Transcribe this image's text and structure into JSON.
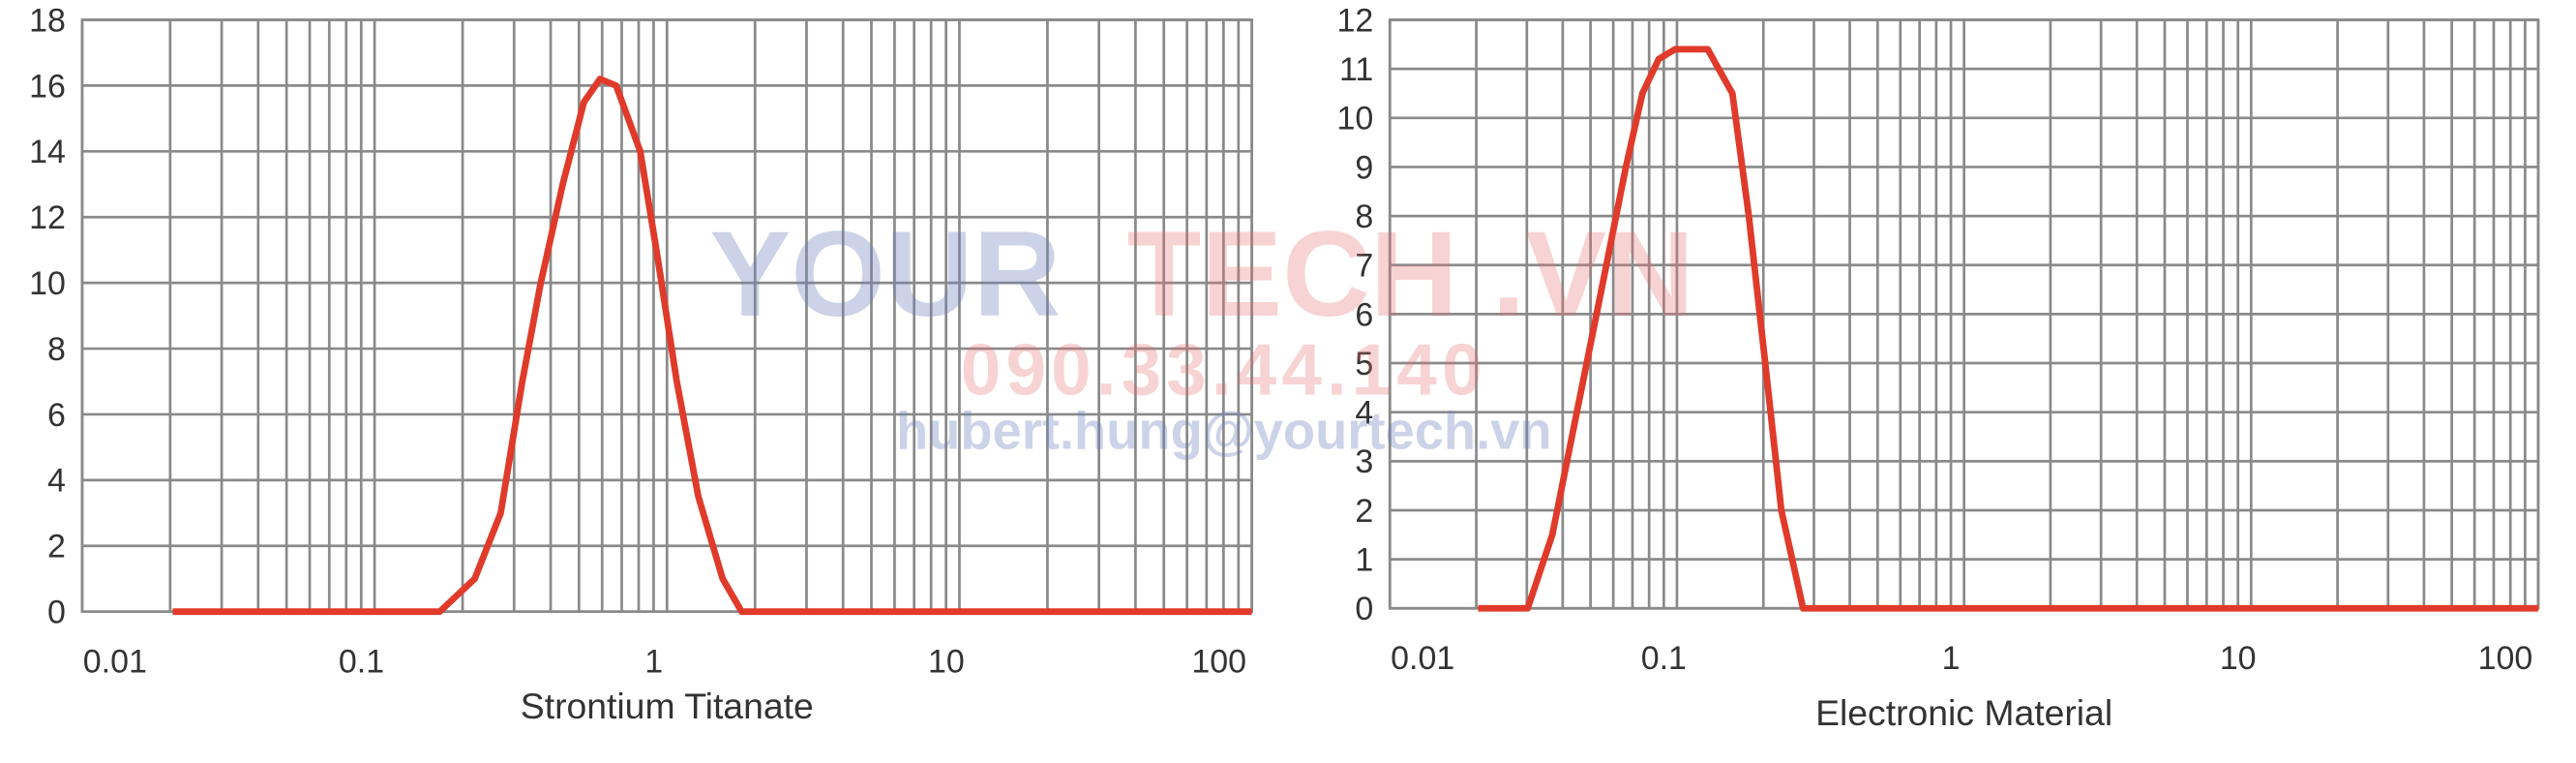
{
  "chart_data": [
    {
      "type": "line",
      "title": "Strontium Titanate",
      "xscale": "log",
      "grid": true,
      "xlim": [
        0.01,
        100
      ],
      "xticks": [
        0.01,
        0.1,
        1,
        10,
        100
      ],
      "ylim": [
        0,
        18
      ],
      "yticks": [
        0,
        2,
        4,
        6,
        8,
        10,
        12,
        14,
        16,
        18
      ],
      "x": [
        0.0204,
        0.167,
        0.22,
        0.27,
        0.32,
        0.37,
        0.44,
        0.52,
        0.59,
        0.67,
        0.81,
        0.92,
        1.08,
        1.28,
        1.55,
        1.8,
        100
      ],
      "series": [
        {
          "color": "#e03a2a",
          "values": [
            0,
            0,
            1,
            3,
            7,
            10,
            13,
            15.5,
            16.2,
            16,
            14,
            11,
            7,
            3.5,
            1,
            0,
            0
          ]
        }
      ]
    },
    {
      "type": "line",
      "title": "Electronic Material",
      "xscale": "log",
      "grid": true,
      "xlim": [
        0.01,
        100
      ],
      "xticks": [
        0.01,
        0.1,
        1,
        10,
        100
      ],
      "ylim": [
        0,
        12
      ],
      "yticks": [
        0,
        1,
        2,
        3,
        4,
        5,
        6,
        7,
        8,
        9,
        10,
        11,
        12
      ],
      "x": [
        0.0203,
        0.0302,
        0.0368,
        0.0448,
        0.0546,
        0.0664,
        0.0758,
        0.0864,
        0.0985,
        0.128,
        0.156,
        0.178,
        0.203,
        0.231,
        0.275,
        100
      ],
      "series": [
        {
          "color": "#e03a2a",
          "values": [
            0,
            0,
            1.5,
            4,
            6.5,
            9,
            10.5,
            11.2,
            11.4,
            11.4,
            10.5,
            8,
            5,
            2,
            0,
            0
          ]
        }
      ]
    }
  ],
  "watermark": {
    "brand_a": "YOUR",
    "brand_b": "TECH .VN",
    "phone": "090.33.44.140",
    "email": "hubert.hung@yourtech.vn"
  }
}
